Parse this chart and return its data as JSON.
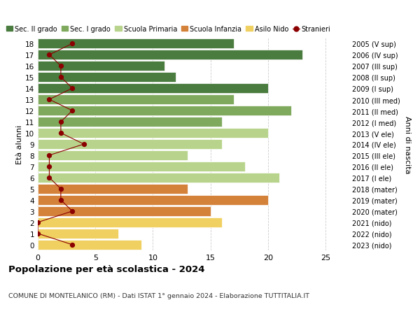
{
  "ages": [
    18,
    17,
    16,
    15,
    14,
    13,
    12,
    11,
    10,
    9,
    8,
    7,
    6,
    5,
    4,
    3,
    2,
    1,
    0
  ],
  "years": [
    "2005 (V sup)",
    "2006 (IV sup)",
    "2007 (III sup)",
    "2008 (II sup)",
    "2009 (I sup)",
    "2010 (III med)",
    "2011 (II med)",
    "2012 (I med)",
    "2013 (V ele)",
    "2014 (IV ele)",
    "2015 (III ele)",
    "2016 (II ele)",
    "2017 (I ele)",
    "2018 (mater)",
    "2019 (mater)",
    "2020 (mater)",
    "2021 (nido)",
    "2022 (nido)",
    "2023 (nido)"
  ],
  "bar_values": [
    17,
    23,
    11,
    12,
    20,
    17,
    22,
    16,
    20,
    16,
    13,
    18,
    21,
    13,
    20,
    15,
    16,
    7,
    9
  ],
  "bar_colors": [
    "#4a7c3f",
    "#4a7c3f",
    "#4a7c3f",
    "#4a7c3f",
    "#4a7c3f",
    "#7faa5e",
    "#7faa5e",
    "#7faa5e",
    "#b8d48c",
    "#b8d48c",
    "#b8d48c",
    "#b8d48c",
    "#b8d48c",
    "#d4813a",
    "#d4813a",
    "#d4813a",
    "#f0d060",
    "#f0d060",
    "#f0d060"
  ],
  "stranieri_x": [
    3,
    1,
    2,
    2,
    3,
    1,
    3,
    2,
    2,
    4,
    1,
    1,
    1,
    2,
    2,
    3,
    0,
    0,
    3
  ],
  "legend_labels": [
    "Sec. II grado",
    "Sec. I grado",
    "Scuola Primaria",
    "Scuola Infanzia",
    "Asilo Nido",
    "Stranieri"
  ],
  "legend_colors": [
    "#4a7c3f",
    "#7faa5e",
    "#b8d48c",
    "#d4813a",
    "#f0d060",
    "#8b0000"
  ],
  "ylabel_left": "Età alunni",
  "ylabel_right": "Anni di nascita",
  "title": "Popolazione per età scolastica - 2024",
  "subtitle": "COMUNE DI MONTELANICO (RM) - Dati ISTAT 1° gennaio 2024 - Elaborazione TUTTITALIA.IT",
  "xlim": [
    0,
    27
  ],
  "xticks": [
    0,
    5,
    10,
    15,
    20,
    25
  ],
  "background_color": "#ffffff",
  "grid_color": "#cccccc"
}
